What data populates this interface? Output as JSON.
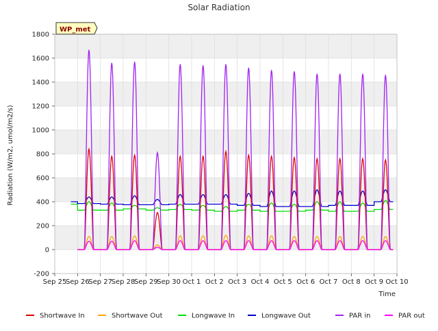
{
  "chart_data": {
    "type": "line",
    "title": "Solar Radiation",
    "xlabel": "Time",
    "ylabel": "Radiation (W/m2, umol/m2/s)",
    "ylim": [
      -200,
      1800
    ],
    "yticks": [
      -200,
      0,
      200,
      400,
      600,
      800,
      1000,
      1200,
      1400,
      1600,
      1800
    ],
    "xlim": [
      0,
      15
    ],
    "xticks": [
      "Sep 25",
      "Sep 26",
      "Sep 27",
      "Sep 28",
      "Sep 29",
      "Sep 30",
      "Oct 1",
      "Oct 2",
      "Oct 3",
      "Oct 4",
      "Oct 5",
      "Oct 6",
      "Oct 7",
      "Oct 8",
      "Oct 9",
      "Oct 10"
    ],
    "grid": true,
    "legend_placement": "bottom",
    "site_label": "WP_met",
    "days": [
      "Sep 25",
      "Sep 26",
      "Sep 27",
      "Sep 28",
      "Sep 29",
      "Sep 30",
      "Oct 1",
      "Oct 2",
      "Oct 3",
      "Oct 4",
      "Oct 5",
      "Oct 6",
      "Oct 7",
      "Oct 8",
      "Oct 9"
    ],
    "series": [
      {
        "name": "Shortwave In",
        "color": "#dd0000",
        "daily_peak": [
          0,
          840,
          780,
          790,
          310,
          780,
          780,
          820,
          790,
          780,
          770,
          760,
          760,
          760,
          750
        ],
        "night": 0
      },
      {
        "name": "Shortwave Out",
        "color": "#ffa500",
        "daily_peak": [
          0,
          110,
          110,
          115,
          40,
          115,
          115,
          120,
          115,
          115,
          110,
          110,
          110,
          110,
          110
        ],
        "night": 0
      },
      {
        "name": "Longwave In",
        "color": "#00dd00",
        "daily_peak": [
          390,
          400,
          390,
          370,
          350,
          380,
          370,
          360,
          380,
          390,
          380,
          400,
          400,
          390,
          410
        ],
        "night": [
          380,
          330,
          330,
          340,
          330,
          335,
          330,
          320,
          330,
          320,
          320,
          330,
          320,
          320,
          335
        ]
      },
      {
        "name": "Longwave Out",
        "color": "#0000cc",
        "daily_peak": [
          400,
          440,
          440,
          450,
          420,
          460,
          460,
          460,
          470,
          490,
          490,
          500,
          490,
          490,
          500
        ],
        "night": [
          400,
          385,
          380,
          375,
          375,
          380,
          380,
          380,
          370,
          360,
          360,
          360,
          370,
          370,
          400
        ]
      },
      {
        "name": "PAR in",
        "color": "#a020f0",
        "daily_peak": [
          0,
          1670,
          1560,
          1570,
          810,
          1550,
          1540,
          1550,
          1520,
          1500,
          1490,
          1470,
          1470,
          1470,
          1460
        ],
        "night": 0
      },
      {
        "name": "PAR out",
        "color": "#ff00ff",
        "daily_peak": [
          0,
          70,
          70,
          75,
          20,
          75,
          75,
          75,
          75,
          75,
          75,
          75,
          75,
          75,
          75
        ],
        "night": 0
      }
    ]
  }
}
